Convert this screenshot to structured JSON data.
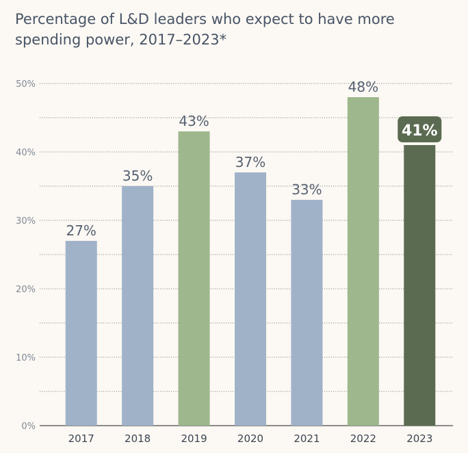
{
  "chart_data": {
    "type": "bar",
    "title": "Percentage of L&D leaders who expect to have more spending power, 2017–2023*",
    "xlabel": "",
    "ylabel": "",
    "ylim": [
      0,
      50
    ],
    "yticks": [
      0,
      10,
      20,
      30,
      40,
      50
    ],
    "ytick_labels": [
      "0%",
      "10%",
      "20%",
      "30%",
      "40%",
      "50%"
    ],
    "grid": true,
    "categories": [
      "2017",
      "2018",
      "2019",
      "2020",
      "2021",
      "2022",
      "2023"
    ],
    "values": [
      27,
      35,
      43,
      37,
      33,
      48,
      41
    ],
    "value_labels": [
      "27%",
      "35%",
      "43%",
      "37%",
      "33%",
      "48%",
      "41%"
    ],
    "bar_colors": [
      "#9fb2c8",
      "#9fb2c8",
      "#9eb78d",
      "#9fb2c8",
      "#9fb2c8",
      "#9eb78d",
      "#5b6b51"
    ],
    "highlight_index": 6,
    "highlight_label_bg": "#5b6b51"
  }
}
